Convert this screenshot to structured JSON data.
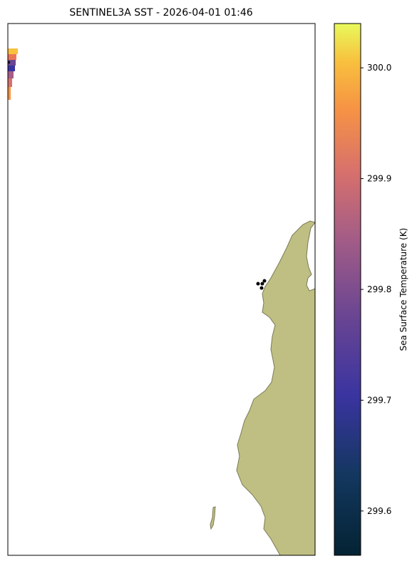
{
  "title": "SENTINEL3A SST - 2026-04-01 01:46",
  "colorbar": {
    "label": "Sea Surface Temperature (K)",
    "range": [
      299.56,
      300.04
    ],
    "ticks": [
      299.6,
      299.7,
      299.8,
      299.9,
      {
        "value": 300.0,
        "label": "300.0"
      }
    ]
  }
}
